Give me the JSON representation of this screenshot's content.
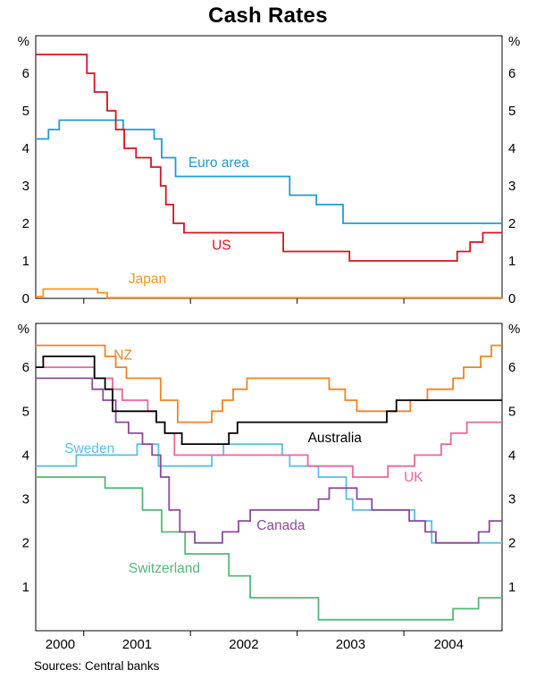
{
  "title": "Cash Rates",
  "footer": {
    "sources": "Sources: Central banks"
  },
  "chart_data": {
    "type": "line",
    "line_style": "step",
    "title": "Cash Rates",
    "x_domain": [
      2000.55,
      2004.92
    ],
    "x_ticks": [
      2001,
      2002,
      2003,
      2004
    ],
    "x_tick_labels": [
      {
        "text": "2000",
        "x": 2000.78
      },
      {
        "text": "2001",
        "x": 2001.5
      },
      {
        "text": "2002",
        "x": 2002.5
      },
      {
        "text": "2003",
        "x": 2003.5
      },
      {
        "text": "2004",
        "x": 2004.42
      }
    ],
    "panels": [
      {
        "name": "top-panel",
        "unit_left": "%",
        "unit_right": "%",
        "y_range": [
          0,
          7
        ],
        "y_ticks": [
          0,
          1,
          2,
          3,
          4,
          5,
          6
        ],
        "series": [
          {
            "name": "Japan",
            "color": "#f7941d",
            "label": {
              "text": "Japan",
              "x": 2001.42,
              "y": 0.52
            },
            "points": [
              [
                2000.55,
                0.05
              ],
              [
                2000.62,
                0.25
              ],
              [
                2001.13,
                0.15
              ],
              [
                2001.22,
                0.02
              ]
            ]
          },
          {
            "name": "Euro area",
            "color": "#1e9bd7",
            "label": {
              "text": "Euro area",
              "x": 2001.98,
              "y": 3.62
            },
            "points": [
              [
                2000.55,
                4.25
              ],
              [
                2000.67,
                4.5
              ],
              [
                2000.77,
                4.75
              ],
              [
                2001.37,
                4.5
              ],
              [
                2001.66,
                4.25
              ],
              [
                2001.73,
                3.75
              ],
              [
                2001.86,
                3.25
              ],
              [
                2002.93,
                2.75
              ],
              [
                2003.18,
                2.5
              ],
              [
                2003.43,
                2.0
              ]
            ]
          },
          {
            "name": "US",
            "color": "#d6131f",
            "label": {
              "text": "US",
              "x": 2002.2,
              "y": 1.42
            },
            "points": [
              [
                2000.55,
                6.5
              ],
              [
                2001.03,
                6.0
              ],
              [
                2001.1,
                5.5
              ],
              [
                2001.22,
                5.0
              ],
              [
                2001.3,
                4.5
              ],
              [
                2001.38,
                4.0
              ],
              [
                2001.49,
                3.75
              ],
              [
                2001.63,
                3.5
              ],
              [
                2001.72,
                3.0
              ],
              [
                2001.77,
                2.5
              ],
              [
                2001.84,
                2.0
              ],
              [
                2001.94,
                1.75
              ],
              [
                2002.87,
                1.25
              ],
              [
                2003.49,
                1.0
              ],
              [
                2004.5,
                1.25
              ],
              [
                2004.62,
                1.5
              ],
              [
                2004.74,
                1.75
              ]
            ]
          }
        ]
      },
      {
        "name": "bottom-panel",
        "unit_left": "%",
        "unit_right": "%",
        "y_range": [
          0,
          7
        ],
        "y_ticks": [
          1,
          2,
          3,
          4,
          5,
          6
        ],
        "series": [
          {
            "name": "Switzerland",
            "color": "#53b878",
            "label": {
              "text": "Switzerland",
              "x": 2001.42,
              "y": 1.42
            },
            "points": [
              [
                2000.55,
                3.5
              ],
              [
                2001.2,
                3.25
              ],
              [
                2001.55,
                2.75
              ],
              [
                2001.73,
                2.25
              ],
              [
                2001.95,
                1.75
              ],
              [
                2002.36,
                1.25
              ],
              [
                2002.56,
                0.75
              ],
              [
                2003.2,
                0.25
              ],
              [
                2004.46,
                0.5
              ],
              [
                2004.7,
                0.75
              ]
            ]
          },
          {
            "name": "Sweden",
            "color": "#56c0e8",
            "label": {
              "text": "Sweden",
              "x": 2000.82,
              "y": 4.15
            },
            "points": [
              [
                2000.55,
                3.75
              ],
              [
                2000.93,
                4.0
              ],
              [
                2001.5,
                4.25
              ],
              [
                2001.7,
                3.75
              ],
              [
                2002.2,
                4.0
              ],
              [
                2002.31,
                4.25
              ],
              [
                2002.86,
                4.0
              ],
              [
                2002.93,
                3.75
              ],
              [
                2003.2,
                3.5
              ],
              [
                2003.46,
                3.0
              ],
              [
                2003.52,
                2.75
              ],
              [
                2004.1,
                2.5
              ],
              [
                2004.26,
                2.0
              ]
            ]
          },
          {
            "name": "Canada",
            "color": "#8d4a99",
            "label": {
              "text": "Canada",
              "x": 2002.62,
              "y": 2.4
            },
            "points": [
              [
                2000.55,
                5.75
              ],
              [
                2001.08,
                5.5
              ],
              [
                2001.18,
                5.25
              ],
              [
                2001.3,
                4.75
              ],
              [
                2001.42,
                4.5
              ],
              [
                2001.55,
                4.25
              ],
              [
                2001.64,
                4.0
              ],
              [
                2001.72,
                3.5
              ],
              [
                2001.8,
                2.75
              ],
              [
                2001.9,
                2.25
              ],
              [
                2002.04,
                2.0
              ],
              [
                2002.3,
                2.25
              ],
              [
                2002.45,
                2.5
              ],
              [
                2002.56,
                2.75
              ],
              [
                2003.2,
                3.0
              ],
              [
                2003.3,
                3.25
              ],
              [
                2003.56,
                3.0
              ],
              [
                2003.7,
                2.75
              ],
              [
                2004.05,
                2.5
              ],
              [
                2004.2,
                2.25
              ],
              [
                2004.3,
                2.0
              ],
              [
                2004.7,
                2.25
              ],
              [
                2004.8,
                2.5
              ]
            ]
          },
          {
            "name": "UK",
            "color": "#f2639f",
            "label": {
              "text": "UK",
              "x": 2004.0,
              "y": 3.5
            },
            "points": [
              [
                2000.55,
                6.0
              ],
              [
                2001.1,
                5.75
              ],
              [
                2001.27,
                5.5
              ],
              [
                2001.36,
                5.25
              ],
              [
                2001.6,
                5.0
              ],
              [
                2001.68,
                4.75
              ],
              [
                2001.76,
                4.5
              ],
              [
                2001.85,
                4.0
              ],
              [
                2003.1,
                3.75
              ],
              [
                2003.52,
                3.5
              ],
              [
                2003.85,
                3.75
              ],
              [
                2004.1,
                4.0
              ],
              [
                2004.35,
                4.25
              ],
              [
                2004.44,
                4.5
              ],
              [
                2004.59,
                4.75
              ]
            ]
          },
          {
            "name": "NZ",
            "color": "#f58220",
            "label": {
              "text": "NZ",
              "x": 2001.28,
              "y": 6.28
            },
            "points": [
              [
                2000.55,
                6.5
              ],
              [
                2001.2,
                6.25
              ],
              [
                2001.3,
                6.0
              ],
              [
                2001.4,
                5.75
              ],
              [
                2001.72,
                5.25
              ],
              [
                2001.88,
                4.75
              ],
              [
                2002.2,
                5.0
              ],
              [
                2002.3,
                5.25
              ],
              [
                2002.4,
                5.5
              ],
              [
                2002.53,
                5.75
              ],
              [
                2003.3,
                5.5
              ],
              [
                2003.45,
                5.25
              ],
              [
                2003.56,
                5.0
              ],
              [
                2004.06,
                5.25
              ],
              [
                2004.22,
                5.5
              ],
              [
                2004.46,
                5.75
              ],
              [
                2004.56,
                6.0
              ],
              [
                2004.72,
                6.25
              ],
              [
                2004.82,
                6.5
              ]
            ]
          },
          {
            "name": "Australia",
            "color": "#000000",
            "label": {
              "text": "Australia",
              "x": 2003.1,
              "y": 4.4
            },
            "points": [
              [
                2000.55,
                6.0
              ],
              [
                2000.62,
                6.25
              ],
              [
                2001.1,
                5.75
              ],
              [
                2001.2,
                5.5
              ],
              [
                2001.27,
                5.0
              ],
              [
                2001.68,
                4.75
              ],
              [
                2001.76,
                4.5
              ],
              [
                2001.92,
                4.25
              ],
              [
                2002.36,
                4.5
              ],
              [
                2002.44,
                4.75
              ],
              [
                2003.84,
                5.0
              ],
              [
                2003.93,
                5.25
              ]
            ]
          }
        ]
      }
    ]
  }
}
